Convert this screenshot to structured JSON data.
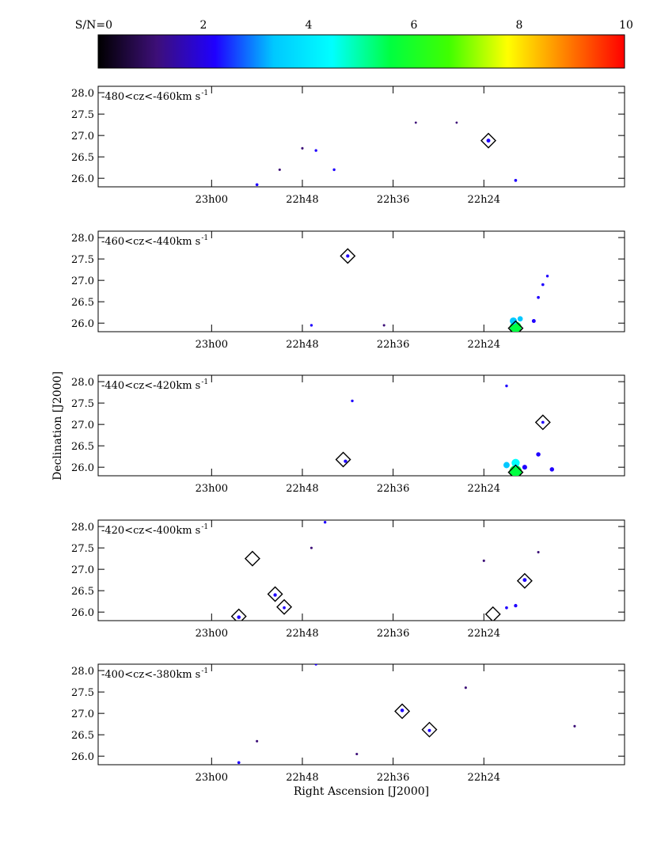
{
  "chart_data": [
    {
      "type": "colorbar",
      "tick_labels": [
        "S/N=0",
        "2",
        "4",
        "6",
        "8",
        "10"
      ],
      "ticks": [
        0,
        2,
        4,
        6,
        8,
        10
      ],
      "range": [
        0,
        10
      ],
      "colormap": [
        "#000000",
        "#3d0f78",
        "#1f00ff",
        "#00c8ff",
        "#00ffff",
        "#00ff40",
        "#40ff00",
        "#ffff00",
        "#ff8000",
        "#ff0000"
      ]
    },
    {
      "type": "scatter",
      "label": "-480<cz<-460km s",
      "label_sup": "-1",
      "xlim": [
        23.25,
        22.09
      ],
      "ylim": [
        25.8,
        28.15
      ],
      "x_ticks": [
        {
          "value": 23.0,
          "label": "23h00"
        },
        {
          "value": 22.8,
          "label": "22h48"
        },
        {
          "value": 22.6,
          "label": "22h36"
        },
        {
          "value": 22.4,
          "label": "22h24"
        }
      ],
      "y_ticks": [
        {
          "value": 28.0,
          "label": "28.0"
        },
        {
          "value": 27.5,
          "label": "27.5"
        },
        {
          "value": 27.0,
          "label": "27.0"
        },
        {
          "value": 26.5,
          "label": "26.5"
        },
        {
          "value": 26.0,
          "label": "26.0"
        }
      ],
      "markers": [
        {
          "ra": 22.39,
          "dec": 26.88
        }
      ],
      "sources": [
        {
          "ra": 22.39,
          "dec": 26.88,
          "sn": 2.2
        },
        {
          "ra": 22.9,
          "dec": 25.85,
          "sn": 1.8
        },
        {
          "ra": 22.8,
          "dec": 26.7,
          "sn": 1.6
        },
        {
          "ra": 22.77,
          "dec": 26.65,
          "sn": 1.7
        },
        {
          "ra": 22.73,
          "dec": 26.2,
          "sn": 1.7
        },
        {
          "ra": 22.85,
          "dec": 26.2,
          "sn": 1.6
        },
        {
          "ra": 22.33,
          "dec": 25.95,
          "sn": 1.8
        },
        {
          "ra": 22.46,
          "dec": 27.3,
          "sn": 1.5
        },
        {
          "ra": 22.55,
          "dec": 27.3,
          "sn": 1.5
        }
      ]
    },
    {
      "type": "scatter",
      "label": "-460<cz<-440km s",
      "label_sup": "-1",
      "xlim": [
        23.25,
        22.09
      ],
      "ylim": [
        25.8,
        28.15
      ],
      "x_ticks": [
        {
          "value": 23.0,
          "label": "23h00"
        },
        {
          "value": 22.8,
          "label": "22h48"
        },
        {
          "value": 22.6,
          "label": "22h36"
        },
        {
          "value": 22.4,
          "label": "22h24"
        }
      ],
      "y_ticks": [
        {
          "value": 28.0,
          "label": "28.0"
        },
        {
          "value": 27.5,
          "label": "27.5"
        },
        {
          "value": 27.0,
          "label": "27.0"
        },
        {
          "value": 26.5,
          "label": "26.5"
        },
        {
          "value": 26.0,
          "label": "26.0"
        }
      ],
      "markers": [
        {
          "ra": 22.7,
          "dec": 27.57
        },
        {
          "ra": 22.33,
          "dec": 25.88
        }
      ],
      "sources": [
        {
          "ra": 22.7,
          "dec": 27.57,
          "sn": 2.0
        },
        {
          "ra": 22.33,
          "dec": 25.9,
          "sn": 5.5
        },
        {
          "ra": 22.335,
          "dec": 26.05,
          "sn": 3.6
        },
        {
          "ra": 22.32,
          "dec": 26.1,
          "sn": 2.8
        },
        {
          "ra": 22.29,
          "dec": 26.05,
          "sn": 2.2
        },
        {
          "ra": 22.28,
          "dec": 26.6,
          "sn": 1.8
        },
        {
          "ra": 22.27,
          "dec": 26.9,
          "sn": 1.8
        },
        {
          "ra": 22.26,
          "dec": 27.1,
          "sn": 1.7
        },
        {
          "ra": 22.78,
          "dec": 25.95,
          "sn": 1.7
        },
        {
          "ra": 22.62,
          "dec": 25.95,
          "sn": 1.6
        }
      ]
    },
    {
      "type": "scatter",
      "label": "-440<cz<-420km s",
      "label_sup": "-1",
      "xlim": [
        23.25,
        22.09
      ],
      "ylim": [
        25.8,
        28.15
      ],
      "x_ticks": [
        {
          "value": 23.0,
          "label": "23h00"
        },
        {
          "value": 22.8,
          "label": "22h48"
        },
        {
          "value": 22.6,
          "label": "22h36"
        },
        {
          "value": 22.4,
          "label": "22h24"
        }
      ],
      "y_ticks": [
        {
          "value": 28.0,
          "label": "28.0"
        },
        {
          "value": 27.5,
          "label": "27.5"
        },
        {
          "value": 27.0,
          "label": "27.0"
        },
        {
          "value": 26.5,
          "label": "26.5"
        },
        {
          "value": 26.0,
          "label": "26.0"
        }
      ],
      "markers": [
        {
          "ra": 22.71,
          "dec": 26.18
        },
        {
          "ra": 22.33,
          "dec": 25.88
        },
        {
          "ra": 22.27,
          "dec": 27.05
        }
      ],
      "sources": [
        {
          "ra": 22.705,
          "dec": 26.14,
          "sn": 2.0
        },
        {
          "ra": 22.33,
          "dec": 25.9,
          "sn": 5.8
        },
        {
          "ra": 22.33,
          "dec": 26.1,
          "sn": 4.0
        },
        {
          "ra": 22.35,
          "dec": 26.05,
          "sn": 3.2
        },
        {
          "ra": 22.31,
          "dec": 26.0,
          "sn": 2.6
        },
        {
          "ra": 22.28,
          "dec": 26.3,
          "sn": 2.4
        },
        {
          "ra": 22.25,
          "dec": 25.95,
          "sn": 2.4
        },
        {
          "ra": 22.27,
          "dec": 27.05,
          "sn": 1.8
        },
        {
          "ra": 22.35,
          "dec": 27.9,
          "sn": 1.7
        },
        {
          "ra": 22.69,
          "dec": 27.55,
          "sn": 1.7
        }
      ]
    },
    {
      "type": "scatter",
      "label": "-420<cz<-400km s",
      "label_sup": "-1",
      "xlim": [
        23.25,
        22.09
      ],
      "ylim": [
        25.8,
        28.15
      ],
      "x_ticks": [
        {
          "value": 23.0,
          "label": "23h00"
        },
        {
          "value": 22.8,
          "label": "22h48"
        },
        {
          "value": 22.6,
          "label": "22h36"
        },
        {
          "value": 22.4,
          "label": "22h24"
        }
      ],
      "y_ticks": [
        {
          "value": 28.0,
          "label": "28.0"
        },
        {
          "value": 27.5,
          "label": "27.5"
        },
        {
          "value": 27.0,
          "label": "27.0"
        },
        {
          "value": 26.5,
          "label": "26.5"
        },
        {
          "value": 26.0,
          "label": "26.0"
        }
      ],
      "markers": [
        {
          "ra": 22.94,
          "dec": 25.9
        },
        {
          "ra": 22.91,
          "dec": 27.25
        },
        {
          "ra": 22.86,
          "dec": 26.42
        },
        {
          "ra": 22.84,
          "dec": 26.12
        },
        {
          "ra": 22.38,
          "dec": 25.95
        },
        {
          "ra": 22.31,
          "dec": 26.73
        }
      ],
      "sources": [
        {
          "ra": 22.94,
          "dec": 25.88,
          "sn": 2.1
        },
        {
          "ra": 22.86,
          "dec": 26.4,
          "sn": 2.0
        },
        {
          "ra": 22.84,
          "dec": 26.1,
          "sn": 1.8
        },
        {
          "ra": 22.31,
          "dec": 26.75,
          "sn": 2.2
        },
        {
          "ra": 22.33,
          "dec": 26.15,
          "sn": 2.0
        },
        {
          "ra": 22.35,
          "dec": 26.1,
          "sn": 1.8
        },
        {
          "ra": 22.75,
          "dec": 28.1,
          "sn": 1.7
        },
        {
          "ra": 22.78,
          "dec": 27.5,
          "sn": 1.6
        },
        {
          "ra": 22.4,
          "dec": 27.2,
          "sn": 1.6
        },
        {
          "ra": 22.28,
          "dec": 27.4,
          "sn": 1.6
        }
      ]
    },
    {
      "type": "scatter",
      "label": "-400<cz<-380km s",
      "label_sup": "-1",
      "xlim": [
        23.25,
        22.09
      ],
      "ylim": [
        25.8,
        28.15
      ],
      "xlabel": "Right Ascension [J2000]",
      "x_ticks": [
        {
          "value": 23.0,
          "label": "23h00"
        },
        {
          "value": 22.8,
          "label": "22h48"
        },
        {
          "value": 22.6,
          "label": "22h36"
        },
        {
          "value": 22.4,
          "label": "22h24"
        }
      ],
      "y_ticks": [
        {
          "value": 28.0,
          "label": "28.0"
        },
        {
          "value": 27.5,
          "label": "27.5"
        },
        {
          "value": 27.0,
          "label": "27.0"
        },
        {
          "value": 26.5,
          "label": "26.5"
        },
        {
          "value": 26.0,
          "label": "26.0"
        }
      ],
      "markers": [
        {
          "ra": 22.58,
          "dec": 27.05
        },
        {
          "ra": 22.52,
          "dec": 26.62
        }
      ],
      "sources": [
        {
          "ra": 22.58,
          "dec": 27.07,
          "sn": 2.1
        },
        {
          "ra": 22.52,
          "dec": 26.6,
          "sn": 1.9
        },
        {
          "ra": 22.94,
          "dec": 25.85,
          "sn": 1.8
        },
        {
          "ra": 22.77,
          "dec": 28.15,
          "sn": 1.7
        },
        {
          "ra": 22.9,
          "dec": 26.35,
          "sn": 1.6
        },
        {
          "ra": 22.2,
          "dec": 26.7,
          "sn": 1.6
        },
        {
          "ra": 22.44,
          "dec": 27.6,
          "sn": 1.6
        },
        {
          "ra": 22.68,
          "dec": 26.05,
          "sn": 1.6
        }
      ]
    }
  ],
  "ylabel": "Declination [J2000]"
}
